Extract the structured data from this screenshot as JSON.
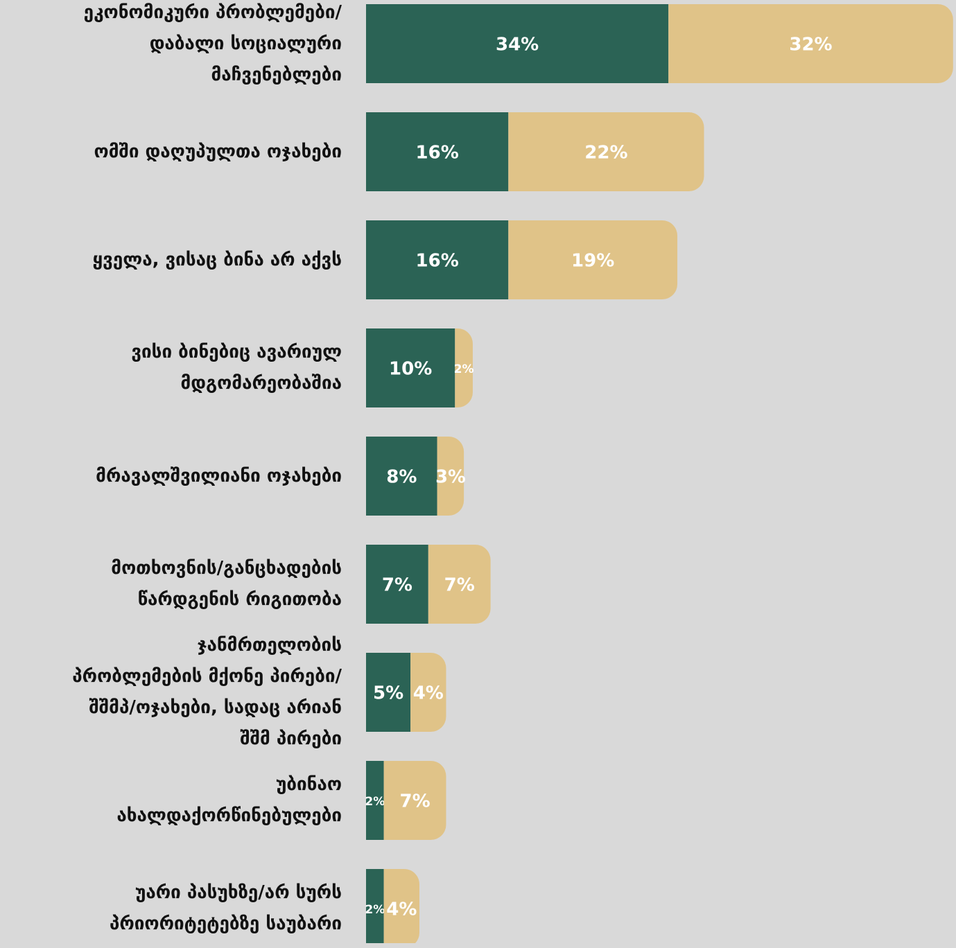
{
  "chart_data": {
    "type": "stacked-barh",
    "categories": [
      "ეკონომიკური პრობლემები/\nდაბალი სოციალური\nმაჩვენებლები",
      "ომში დაღუპულთა ოჯახები",
      "ყველა, ვისაც ბინა არ აქვს",
      "ვისი ბინებიც ავარიულ\nმდგომარეობაშია",
      "მრავალშვილიანი ოჯახები",
      "მოთხოვნის/განცხადების\nწარდგენის რიგითობა",
      "ჯანმრთელობის\nპრობლემების მქონე პირები/\nშშმპ/ოჯახები, სადაც არიან\nშშმ პირები",
      "უბინაო\nახალდაქორწინებულები",
      "უარი პასუხზე/არ სურს\nპრიორიტეტებზე საუბარი"
    ],
    "series": [
      {
        "color": "#2b6355",
        "values": [
          34,
          16,
          16,
          10,
          8,
          7,
          5,
          2,
          2
        ],
        "value_labels": [
          "34%",
          "16%",
          "16%",
          "10%",
          "8%",
          "7%",
          "5%",
          "2%",
          "2%"
        ]
      },
      {
        "color": "#e0c388",
        "values": [
          32,
          22,
          19,
          2,
          3,
          7,
          4,
          7,
          4
        ],
        "value_labels": [
          "32%",
          "22%",
          "19%",
          "2%",
          "3%",
          "7%",
          "4%",
          "7%",
          "4%"
        ]
      }
    ]
  }
}
